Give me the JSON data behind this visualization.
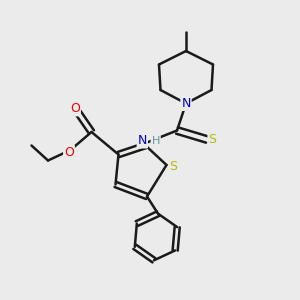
{
  "bg_color": "#ebebeb",
  "bond_color": "#1a1a1a",
  "N_color": "#0000cc",
  "O_color": "#ee0000",
  "S_color": "#bbbb00",
  "H_color": "#5a9a9a",
  "line_width": 1.8,
  "figsize": [
    3.0,
    3.0
  ],
  "dpi": 100,
  "xlim": [
    0,
    10
  ],
  "ylim": [
    0,
    10
  ]
}
